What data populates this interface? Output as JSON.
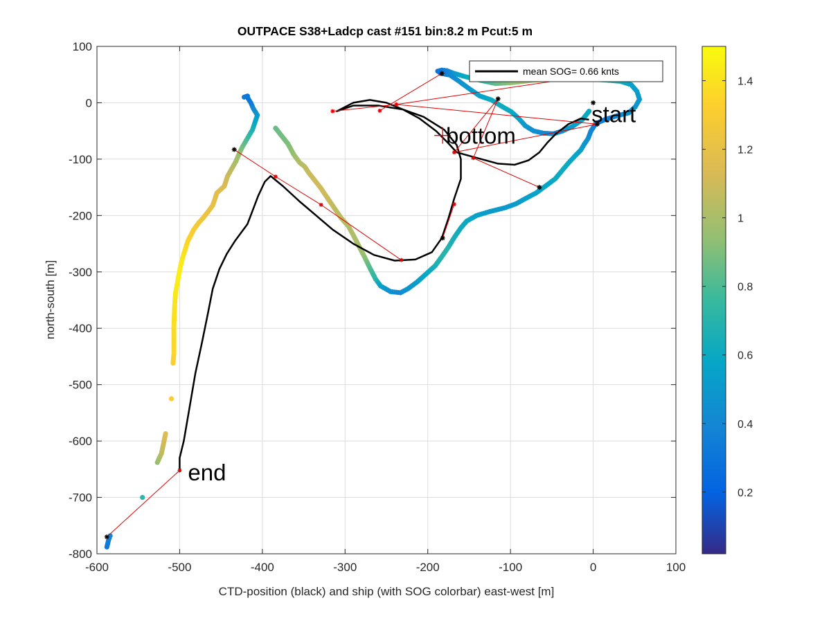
{
  "chart_data": {
    "type": "scatter",
    "title": "OUTPACE S38+Ladcp cast #151 bin:8.2 m  Pcut:5 m",
    "xlabel": "CTD-position (black) and ship (with SOG colorbar) east-west [m]",
    "ylabel": "north-south [m]",
    "xlim": [
      -600,
      100
    ],
    "ylim": [
      -800,
      100
    ],
    "xticks": [
      -600,
      -500,
      -400,
      -300,
      -200,
      -100,
      0,
      100
    ],
    "yticks": [
      100,
      0,
      -100,
      -200,
      -300,
      -400,
      -500,
      -600,
      -700,
      -800
    ],
    "xtick_labels": [
      "-600",
      "-500",
      "-400",
      "-300",
      "-200",
      "-100",
      "0",
      "100"
    ],
    "ytick_labels": [
      "100",
      "0",
      "-100",
      "-200",
      "-300",
      "-400",
      "-500",
      "-600",
      "-700",
      "-800"
    ],
    "grid": true,
    "legend": {
      "label": "mean SOG=  0.66 knts",
      "placement": "top-right"
    },
    "colorbar": {
      "lim": [
        0.02,
        1.5
      ],
      "ticks": [
        0.2,
        0.4,
        0.6,
        0.8,
        1,
        1.2,
        1.4
      ],
      "tick_labels": [
        "0.2",
        "0.4",
        "0.6",
        "0.8",
        "1",
        "1.2",
        "1.4"
      ]
    },
    "annotations": [
      {
        "text": "start",
        "x": -2,
        "y": -20
      },
      {
        "text": "bottom",
        "x": -178,
        "y": -58
      },
      {
        "text": "end",
        "x": -490,
        "y": -655
      }
    ],
    "bottom_marker": {
      "x": -182,
      "y": -58
    },
    "ctd_track": {
      "color": "#000000",
      "points": [
        [
          -5,
          -30
        ],
        [
          -15,
          -28
        ],
        [
          -30,
          -38
        ],
        [
          -45,
          -55
        ],
        [
          -55,
          -70
        ],
        [
          -65,
          -88
        ],
        [
          -78,
          -102
        ],
        [
          -95,
          -110
        ],
        [
          -115,
          -108
        ],
        [
          -140,
          -98
        ],
        [
          -165,
          -88
        ],
        [
          -175,
          -72
        ],
        [
          -190,
          -50
        ],
        [
          -210,
          -28
        ],
        [
          -230,
          -12
        ],
        [
          -250,
          0
        ],
        [
          -270,
          5
        ],
        [
          -290,
          0
        ],
        [
          -310,
          -15
        ],
        [
          -290,
          -5
        ],
        [
          -260,
          -5
        ],
        [
          -230,
          -12
        ],
        [
          -205,
          -25
        ],
        [
          -180,
          -48
        ],
        [
          -165,
          -75
        ],
        [
          -160,
          -100
        ],
        [
          -160,
          -135
        ],
        [
          -168,
          -170
        ],
        [
          -175,
          -205
        ],
        [
          -183,
          -240
        ],
        [
          -195,
          -265
        ],
        [
          -215,
          -278
        ],
        [
          -240,
          -280
        ],
        [
          -265,
          -270
        ],
        [
          -290,
          -250
        ],
        [
          -315,
          -225
        ],
        [
          -335,
          -200
        ],
        [
          -355,
          -175
        ],
        [
          -375,
          -148
        ],
        [
          -390,
          -130
        ],
        [
          -397,
          -140
        ],
        [
          -405,
          -165
        ],
        [
          -418,
          -215
        ],
        [
          -433,
          -245
        ],
        [
          -443,
          -268
        ],
        [
          -452,
          -295
        ],
        [
          -460,
          -330
        ],
        [
          -466,
          -375
        ],
        [
          -473,
          -425
        ],
        [
          -481,
          -480
        ],
        [
          -488,
          -540
        ],
        [
          -495,
          -600
        ],
        [
          -500,
          -630
        ],
        [
          -500,
          -655
        ]
      ]
    },
    "ship_track": {
      "value_unit": "knts",
      "points": [
        [
          -588,
          -788,
          0.32
        ],
        [
          -586,
          -776,
          0.35
        ],
        [
          -584,
          -768,
          0.4
        ],
        [
          -545,
          -700,
          0.72
        ],
        [
          -527,
          -638,
          0.95
        ],
        [
          -522,
          -622,
          1.05
        ],
        [
          -517,
          -587,
          1.15
        ],
        [
          -510,
          -525,
          1.3
        ],
        [
          -508,
          -462,
          1.32
        ],
        [
          -507,
          -445,
          1.35
        ],
        [
          -507,
          -396,
          1.38
        ],
        [
          -506,
          -358,
          1.4
        ],
        [
          -505,
          -338,
          1.42
        ],
        [
          -503,
          -322,
          1.44
        ],
        [
          -501,
          -305,
          1.45
        ],
        [
          -499,
          -290,
          1.44
        ],
        [
          -497,
          -278,
          1.43
        ],
        [
          -495,
          -268,
          1.4
        ],
        [
          -490,
          -245,
          1.35
        ],
        [
          -483,
          -225,
          1.3
        ],
        [
          -477,
          -213,
          1.27
        ],
        [
          -472,
          -205,
          1.25
        ],
        [
          -466,
          -194,
          1.22
        ],
        [
          -460,
          -182,
          1.2
        ],
        [
          -455,
          -160,
          1.18
        ],
        [
          -446,
          -148,
          1.15
        ],
        [
          -442,
          -130,
          1.1
        ],
        [
          -437,
          -117,
          1.05
        ],
        [
          -432,
          -104,
          1.0
        ],
        [
          -427,
          -87,
          0.95
        ],
        [
          -424,
          -78,
          0.88
        ],
        [
          -420,
          -68,
          0.82
        ],
        [
          -416,
          -58,
          0.75
        ],
        [
          -412,
          -48,
          0.68
        ],
        [
          -406,
          -22,
          0.52
        ],
        [
          -411,
          -10,
          0.42
        ],
        [
          -414,
          0,
          0.34
        ],
        [
          -417,
          7,
          0.3
        ],
        [
          -418,
          12,
          0.3
        ],
        [
          -422,
          10,
          0.32
        ],
        [
          -384,
          -45,
          0.85
        ],
        [
          -369,
          -73,
          0.9
        ],
        [
          -362,
          -92,
          0.95
        ],
        [
          -355,
          -106,
          1.02
        ],
        [
          -349,
          -113,
          1.05
        ],
        [
          -344,
          -124,
          1.08
        ],
        [
          -337,
          -137,
          1.1
        ],
        [
          -330,
          -150,
          1.1
        ],
        [
          -324,
          -163,
          1.1
        ],
        [
          -318,
          -176,
          1.08
        ],
        [
          -311,
          -191,
          1.05
        ],
        [
          -305,
          -204,
          1.05
        ],
        [
          -296,
          -219,
          1.02
        ],
        [
          -290,
          -235,
          1.02
        ],
        [
          -284,
          -252,
          1.0
        ],
        [
          -277,
          -272,
          0.95
        ],
        [
          -270,
          -293,
          0.82
        ],
        [
          -263,
          -313,
          0.72
        ],
        [
          -257,
          -325,
          0.55
        ],
        [
          -245,
          -335,
          0.45
        ],
        [
          -233,
          -337,
          0.42
        ],
        [
          -224,
          -330,
          0.48
        ],
        [
          -213,
          -318,
          0.52
        ],
        [
          -203,
          -305,
          0.58
        ],
        [
          -191,
          -289,
          0.65
        ],
        [
          -183,
          -273,
          0.7
        ],
        [
          -175,
          -256,
          0.7
        ],
        [
          -168,
          -239,
          0.65
        ],
        [
          -160,
          -222,
          0.62
        ],
        [
          -153,
          -210,
          0.6
        ],
        [
          -141,
          -200,
          0.55
        ],
        [
          -125,
          -193,
          0.52
        ],
        [
          -106,
          -186,
          0.5
        ],
        [
          -93,
          -179,
          0.52
        ],
        [
          -82,
          -170,
          0.54
        ],
        [
          -69,
          -160,
          0.56
        ],
        [
          -56,
          -146,
          0.58
        ],
        [
          -46,
          -135,
          0.6
        ],
        [
          -38,
          -121,
          0.62
        ],
        [
          -30,
          -107,
          0.6
        ],
        [
          -23,
          -96,
          0.58
        ],
        [
          -15,
          -84,
          0.55
        ],
        [
          -11,
          -74,
          0.5
        ],
        [
          -6,
          -63,
          0.45
        ],
        [
          -3,
          -51,
          0.4
        ],
        [
          3,
          -37,
          0.36
        ],
        [
          14,
          -30,
          0.35
        ],
        [
          29,
          -23,
          0.38
        ],
        [
          43,
          -18,
          0.45
        ],
        [
          51,
          -7,
          0.48
        ],
        [
          56,
          6,
          0.5
        ],
        [
          53,
          20,
          0.52
        ],
        [
          46,
          32,
          0.55
        ],
        [
          33,
          38,
          0.62
        ],
        [
          17,
          40,
          0.72
        ],
        [
          -2,
          42,
          0.85
        ],
        [
          -23,
          44,
          0.95
        ],
        [
          -48,
          42,
          0.98
        ],
        [
          -73,
          40,
          0.98
        ],
        [
          -96,
          36,
          0.95
        ],
        [
          -118,
          34,
          0.85
        ],
        [
          -137,
          40,
          0.72
        ],
        [
          -154,
          46,
          0.62
        ],
        [
          -168,
          52,
          0.52
        ],
        [
          -177,
          57,
          0.4
        ],
        [
          -183,
          58,
          0.33
        ],
        [
          -188,
          56,
          0.3
        ],
        [
          -184,
          52,
          0.32
        ],
        [
          -173,
          49,
          0.4
        ],
        [
          -162,
          38,
          0.45
        ],
        [
          -150,
          25,
          0.5
        ],
        [
          -137,
          12,
          0.55
        ],
        [
          -123,
          5,
          0.6
        ],
        [
          -111,
          -6,
          0.62
        ],
        [
          -99,
          -16,
          0.6
        ],
        [
          -90,
          -28,
          0.55
        ],
        [
          -82,
          -41,
          0.5
        ],
        [
          -72,
          -50,
          0.45
        ],
        [
          -60,
          -54,
          0.42
        ],
        [
          -48,
          -55,
          0.42
        ],
        [
          -37,
          -50,
          0.45
        ],
        [
          -25,
          -42,
          0.52
        ],
        [
          -13,
          -30,
          0.58
        ],
        [
          -5,
          -15,
          0.6
        ]
      ]
    },
    "red_links": [
      [
        [
          -588,
          -770
        ],
        [
          -500,
          -652
        ]
      ],
      [
        [
          -434,
          -83
        ],
        [
          -384,
          -131
        ]
      ],
      [
        [
          -384,
          -131
        ],
        [
          -329,
          -181
        ]
      ],
      [
        [
          -329,
          -181
        ],
        [
          -232,
          -279
        ]
      ],
      [
        [
          -182,
          -240
        ],
        [
          -168,
          -180
        ]
      ],
      [
        [
          -258,
          -14
        ],
        [
          -183,
          52
        ]
      ],
      [
        [
          -315,
          -15
        ],
        [
          -238,
          -3
        ]
      ],
      [
        [
          -238,
          -3
        ],
        [
          -40,
          40
        ]
      ],
      [
        [
          -238,
          -3
        ],
        [
          5,
          -38
        ]
      ],
      [
        [
          -168,
          -88
        ],
        [
          -115,
          7
        ]
      ],
      [
        [
          -145,
          -98
        ],
        [
          -115,
          7
        ]
      ],
      [
        [
          -145,
          -98
        ],
        [
          -65,
          -150
        ]
      ],
      [
        [
          -168,
          -88
        ],
        [
          5,
          -38
        ]
      ]
    ],
    "red_points": [
      [
        -588,
        -770
      ],
      [
        -500,
        -652
      ],
      [
        -434,
        -83
      ],
      [
        -384,
        -131
      ],
      [
        -329,
        -181
      ],
      [
        -232,
        -279
      ],
      [
        -182,
        -240
      ],
      [
        -168,
        -180
      ],
      [
        -315,
        -15
      ],
      [
        -258,
        -14
      ],
      [
        -238,
        -3
      ],
      [
        -183,
        52
      ],
      [
        -115,
        7
      ],
      [
        -145,
        -98
      ],
      [
        -168,
        -88
      ],
      [
        -65,
        -150
      ],
      [
        0,
        0
      ],
      [
        5,
        -38
      ]
    ],
    "black_markers": [
      [
        -588,
        -770
      ],
      [
        -434,
        -83
      ],
      [
        -183,
        52
      ],
      [
        -115,
        7
      ],
      [
        0,
        0
      ],
      [
        5,
        -38
      ],
      [
        -182,
        -240
      ],
      [
        -65,
        -150
      ]
    ]
  }
}
